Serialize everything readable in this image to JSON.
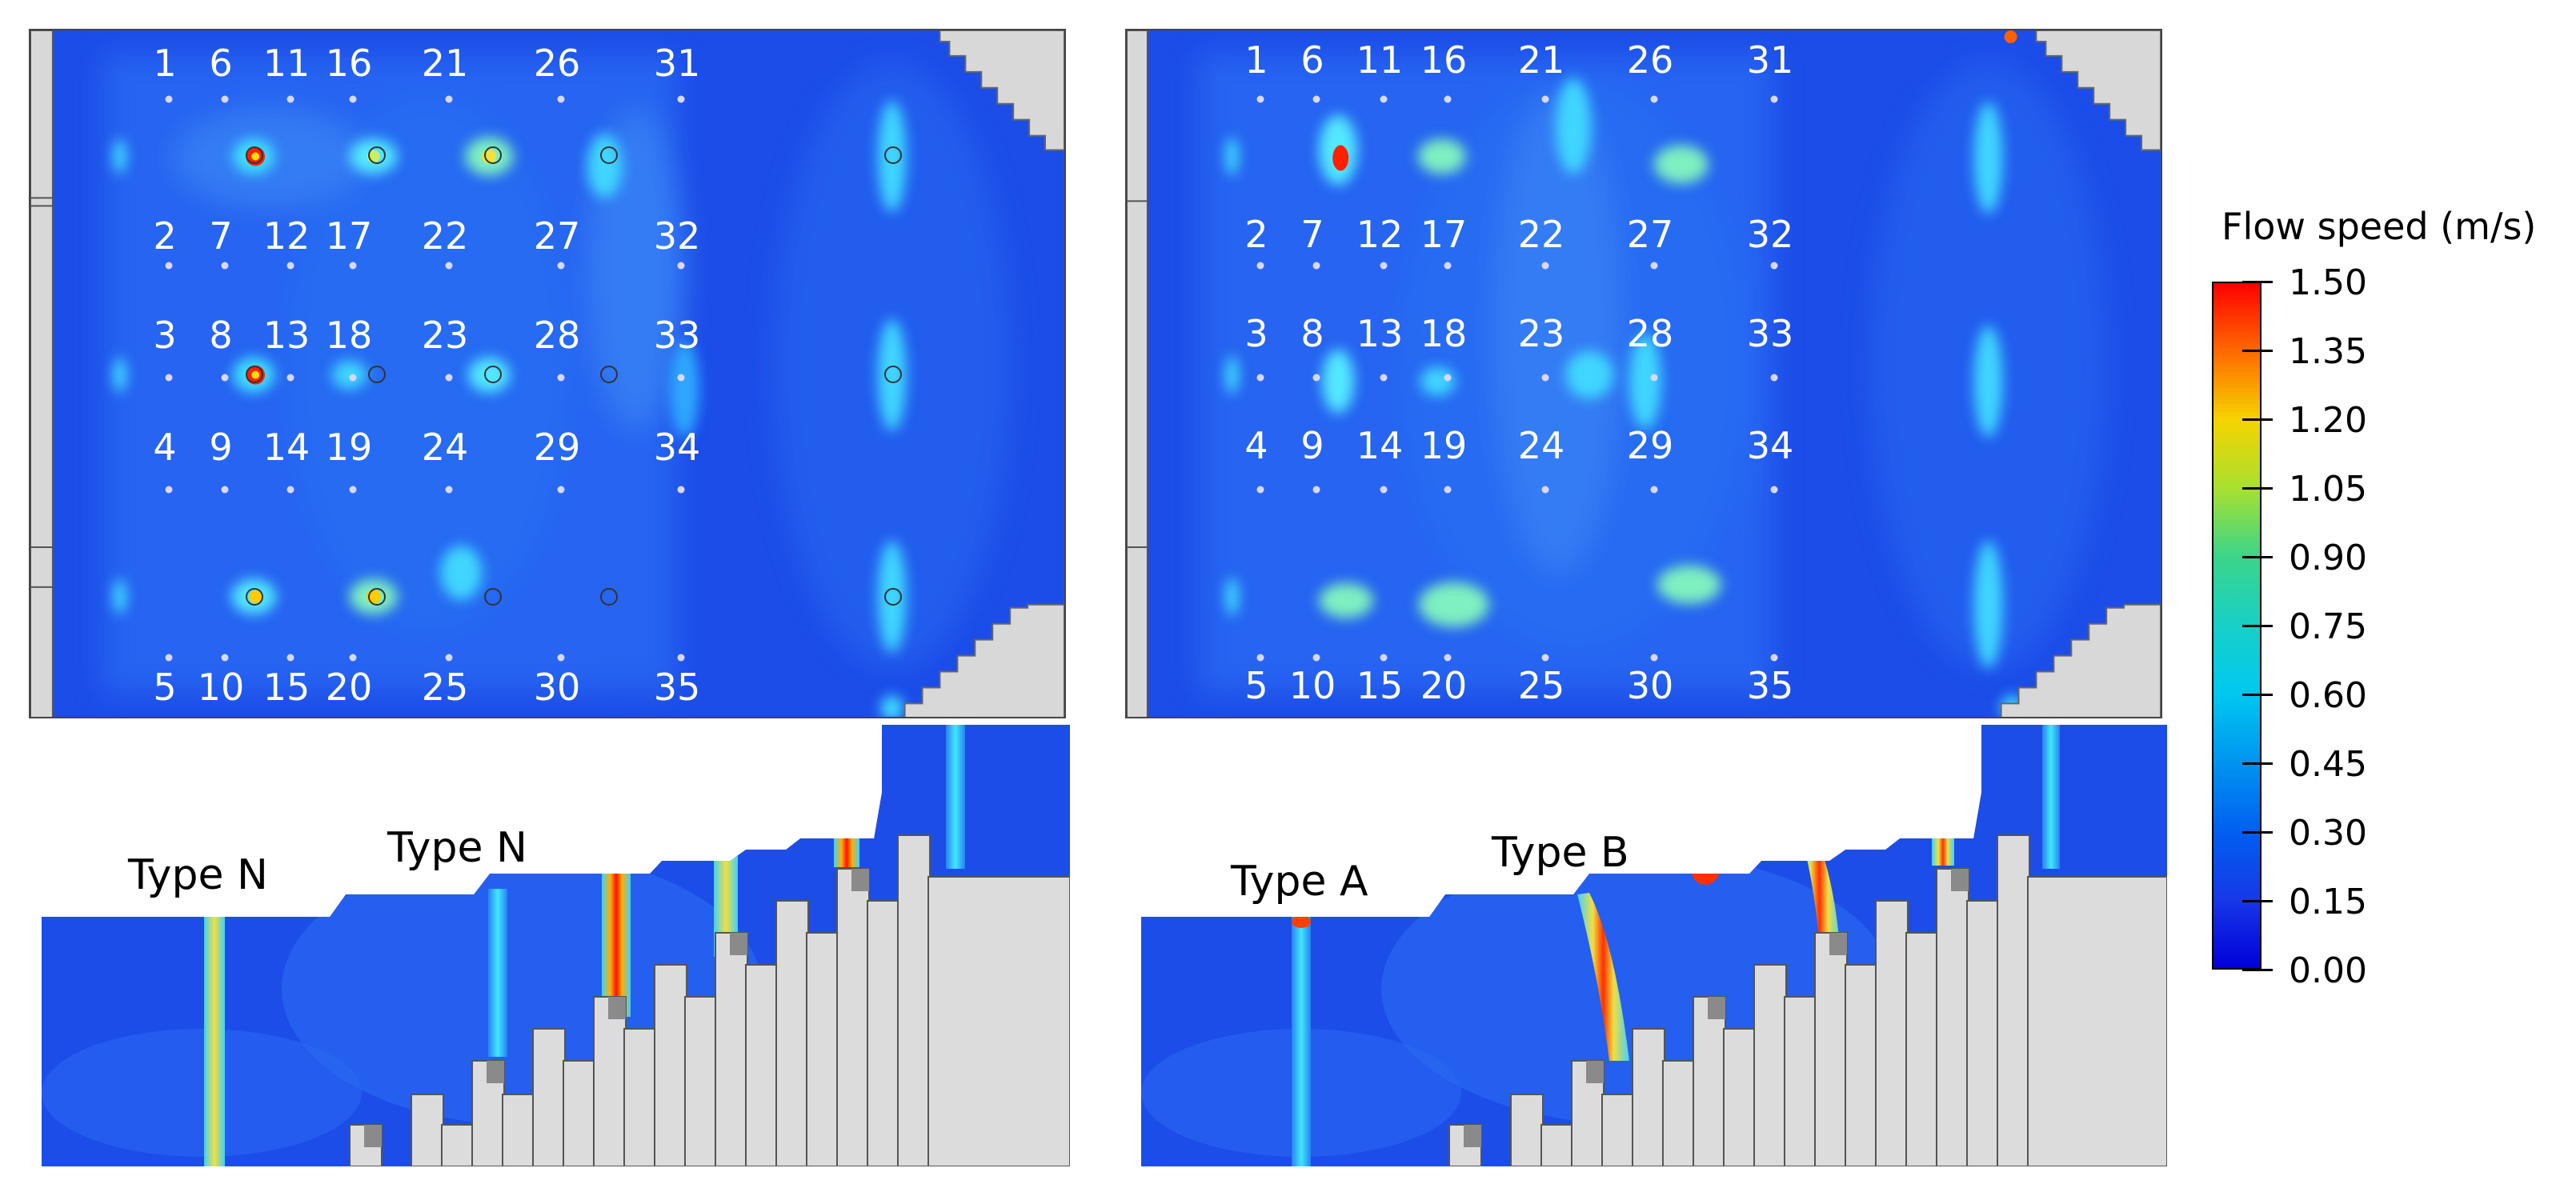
{
  "colorbar": {
    "title": "Flow speed (m/s)",
    "ticks": [
      "1.50",
      "1.35",
      "1.20",
      "1.05",
      "0.90",
      "0.75",
      "0.60",
      "0.45",
      "0.30",
      "0.15",
      "0.00"
    ],
    "colors": [
      "#ff0000",
      "#ff6a00",
      "#f5d400",
      "#a8e030",
      "#3ad58a",
      "#18d0c8",
      "#00c8f0",
      "#0094f0",
      "#0060f0",
      "#1838e8",
      "#0000d8"
    ]
  },
  "plan_labels": {
    "row1": [
      "1",
      "6",
      "11",
      "16",
      "21",
      "26",
      "31"
    ],
    "row2": [
      "2",
      "7",
      "12",
      "17",
      "22",
      "27",
      "32"
    ],
    "row3": [
      "3",
      "8",
      "13",
      "18",
      "23",
      "28",
      "33"
    ],
    "row4": [
      "4",
      "9",
      "14",
      "19",
      "24",
      "29",
      "34"
    ],
    "row5": [
      "5",
      "10",
      "15",
      "20",
      "25",
      "30",
      "35"
    ]
  },
  "profile_left": {
    "type1": "Type N",
    "type2": "Type N"
  },
  "profile_right": {
    "type1": "Type A",
    "type2": "Type B"
  }
}
